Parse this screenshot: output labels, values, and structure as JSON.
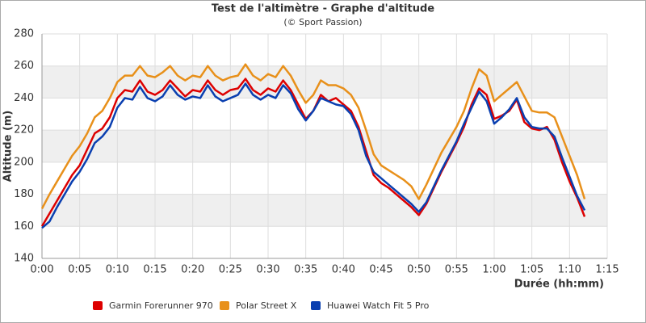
{
  "chart_data": {
    "type": "line",
    "title": "Test de l'altimètre - Graphe d'altitude",
    "subtitle": "(© Sport Passion)",
    "y_label": "Altitude (m)",
    "x_label": "Durée (hh:mm)",
    "x": [
      0,
      1,
      2,
      3,
      4,
      5,
      6,
      7,
      8,
      9,
      10,
      11,
      12,
      13,
      14,
      15,
      16,
      17,
      18,
      19,
      20,
      21,
      22,
      23,
      24,
      25,
      26,
      27,
      28,
      29,
      30,
      31,
      32,
      33,
      34,
      35,
      36,
      37,
      38,
      39,
      40,
      41,
      42,
      43,
      44,
      45,
      46,
      47,
      48,
      49,
      50,
      51,
      52,
      53,
      54,
      55,
      56,
      57,
      58,
      59,
      60,
      61,
      62,
      63,
      64,
      65,
      66,
      67,
      68,
      69,
      70,
      71,
      72
    ],
    "series": [
      {
        "name": "Garmin Forerunner 970",
        "color": "#dd0000",
        "values": [
          160,
          168,
          176,
          184,
          192,
          198,
          208,
          218,
          221,
          228,
          240,
          245,
          244,
          251,
          244,
          242,
          245,
          251,
          246,
          241,
          245,
          244,
          251,
          245,
          242,
          245,
          246,
          252,
          245,
          242,
          246,
          244,
          251,
          245,
          236,
          227,
          232,
          242,
          238,
          240,
          236,
          232,
          222,
          207,
          192,
          187,
          184,
          180,
          176,
          172,
          167,
          174,
          184,
          194,
          203,
          212,
          222,
          236,
          246,
          242,
          227,
          229,
          232,
          239,
          225,
          221,
          220,
          222,
          214,
          200,
          188,
          178,
          166
        ]
      },
      {
        "name": "Polar Street X",
        "color": "#e8901a",
        "values": [
          171,
          180,
          188,
          196,
          204,
          210,
          218,
          228,
          232,
          240,
          250,
          254,
          254,
          260,
          254,
          253,
          256,
          260,
          254,
          251,
          254,
          253,
          260,
          254,
          251,
          253,
          254,
          261,
          254,
          251,
          255,
          253,
          260,
          254,
          245,
          237,
          242,
          251,
          248,
          248,
          246,
          242,
          234,
          220,
          205,
          198,
          195,
          192,
          189,
          185,
          177,
          186,
          196,
          206,
          214,
          222,
          232,
          246,
          258,
          254,
          238,
          242,
          246,
          250,
          241,
          232,
          231,
          231,
          228,
          216,
          204,
          192,
          177
        ]
      },
      {
        "name": "Huawei Watch Fit 5 Pro",
        "color": "#0a3fb0",
        "values": [
          159,
          163,
          172,
          180,
          188,
          194,
          202,
          212,
          216,
          222,
          234,
          240,
          239,
          247,
          240,
          238,
          241,
          248,
          242,
          239,
          241,
          240,
          248,
          241,
          238,
          240,
          242,
          249,
          242,
          239,
          242,
          240,
          248,
          243,
          233,
          226,
          232,
          240,
          238,
          236,
          235,
          230,
          220,
          204,
          194,
          190,
          186,
          182,
          178,
          174,
          169,
          175,
          185,
          195,
          204,
          213,
          224,
          234,
          244,
          238,
          224,
          228,
          233,
          240,
          228,
          222,
          221,
          221,
          216,
          203,
          191,
          179,
          170
        ]
      }
    ],
    "xlim": [
      0,
      75
    ],
    "xticks": [
      {
        "value": 0,
        "label": "0:00"
      },
      {
        "value": 5,
        "label": "0:05"
      },
      {
        "value": 10,
        "label": "0:10"
      },
      {
        "value": 15,
        "label": "0:15"
      },
      {
        "value": 20,
        "label": "0:20"
      },
      {
        "value": 25,
        "label": "0:25"
      },
      {
        "value": 30,
        "label": "0:30"
      },
      {
        "value": 35,
        "label": "0:35"
      },
      {
        "value": 40,
        "label": "0:40"
      },
      {
        "value": 45,
        "label": "0:45"
      },
      {
        "value": 50,
        "label": "0:50"
      },
      {
        "value": 55,
        "label": "0:55"
      },
      {
        "value": 60,
        "label": "1:00"
      },
      {
        "value": 65,
        "label": "1:05"
      },
      {
        "value": 70,
        "label": "1:10"
      },
      {
        "value": 75,
        "label": "1:15"
      }
    ],
    "ylim": [
      140,
      280
    ],
    "yticks": [
      140,
      160,
      180,
      200,
      220,
      240,
      260,
      280
    ],
    "grid": true,
    "legend": "bottom"
  }
}
